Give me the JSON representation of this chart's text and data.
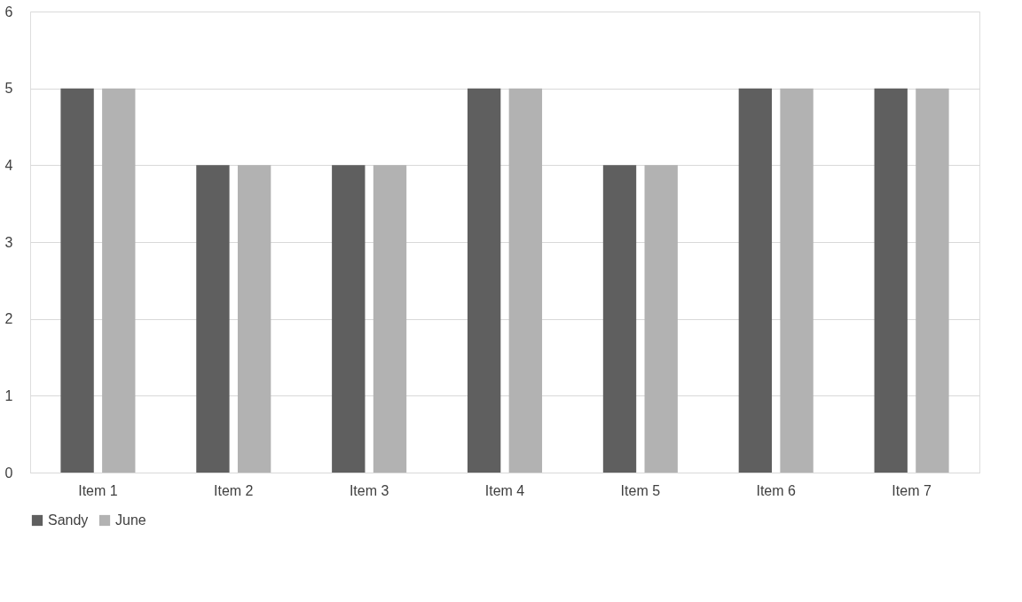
{
  "chart_data": {
    "type": "bar",
    "categories": [
      "Item 1",
      "Item 2",
      "Item 3",
      "Item 4",
      "Item 5",
      "Item 6",
      "Item 7"
    ],
    "series": [
      {
        "name": "Sandy",
        "color": "#5f5f5f",
        "values": [
          5,
          4,
          4,
          5,
          4,
          5,
          5
        ]
      },
      {
        "name": "June",
        "color": "#b2b2b2",
        "values": [
          5,
          4,
          4,
          5,
          4,
          5,
          5
        ]
      }
    ],
    "ylim": [
      0,
      6
    ],
    "yticks": [
      0,
      1,
      2,
      3,
      4,
      5,
      6
    ],
    "grid": "y",
    "legend": "bottom"
  }
}
